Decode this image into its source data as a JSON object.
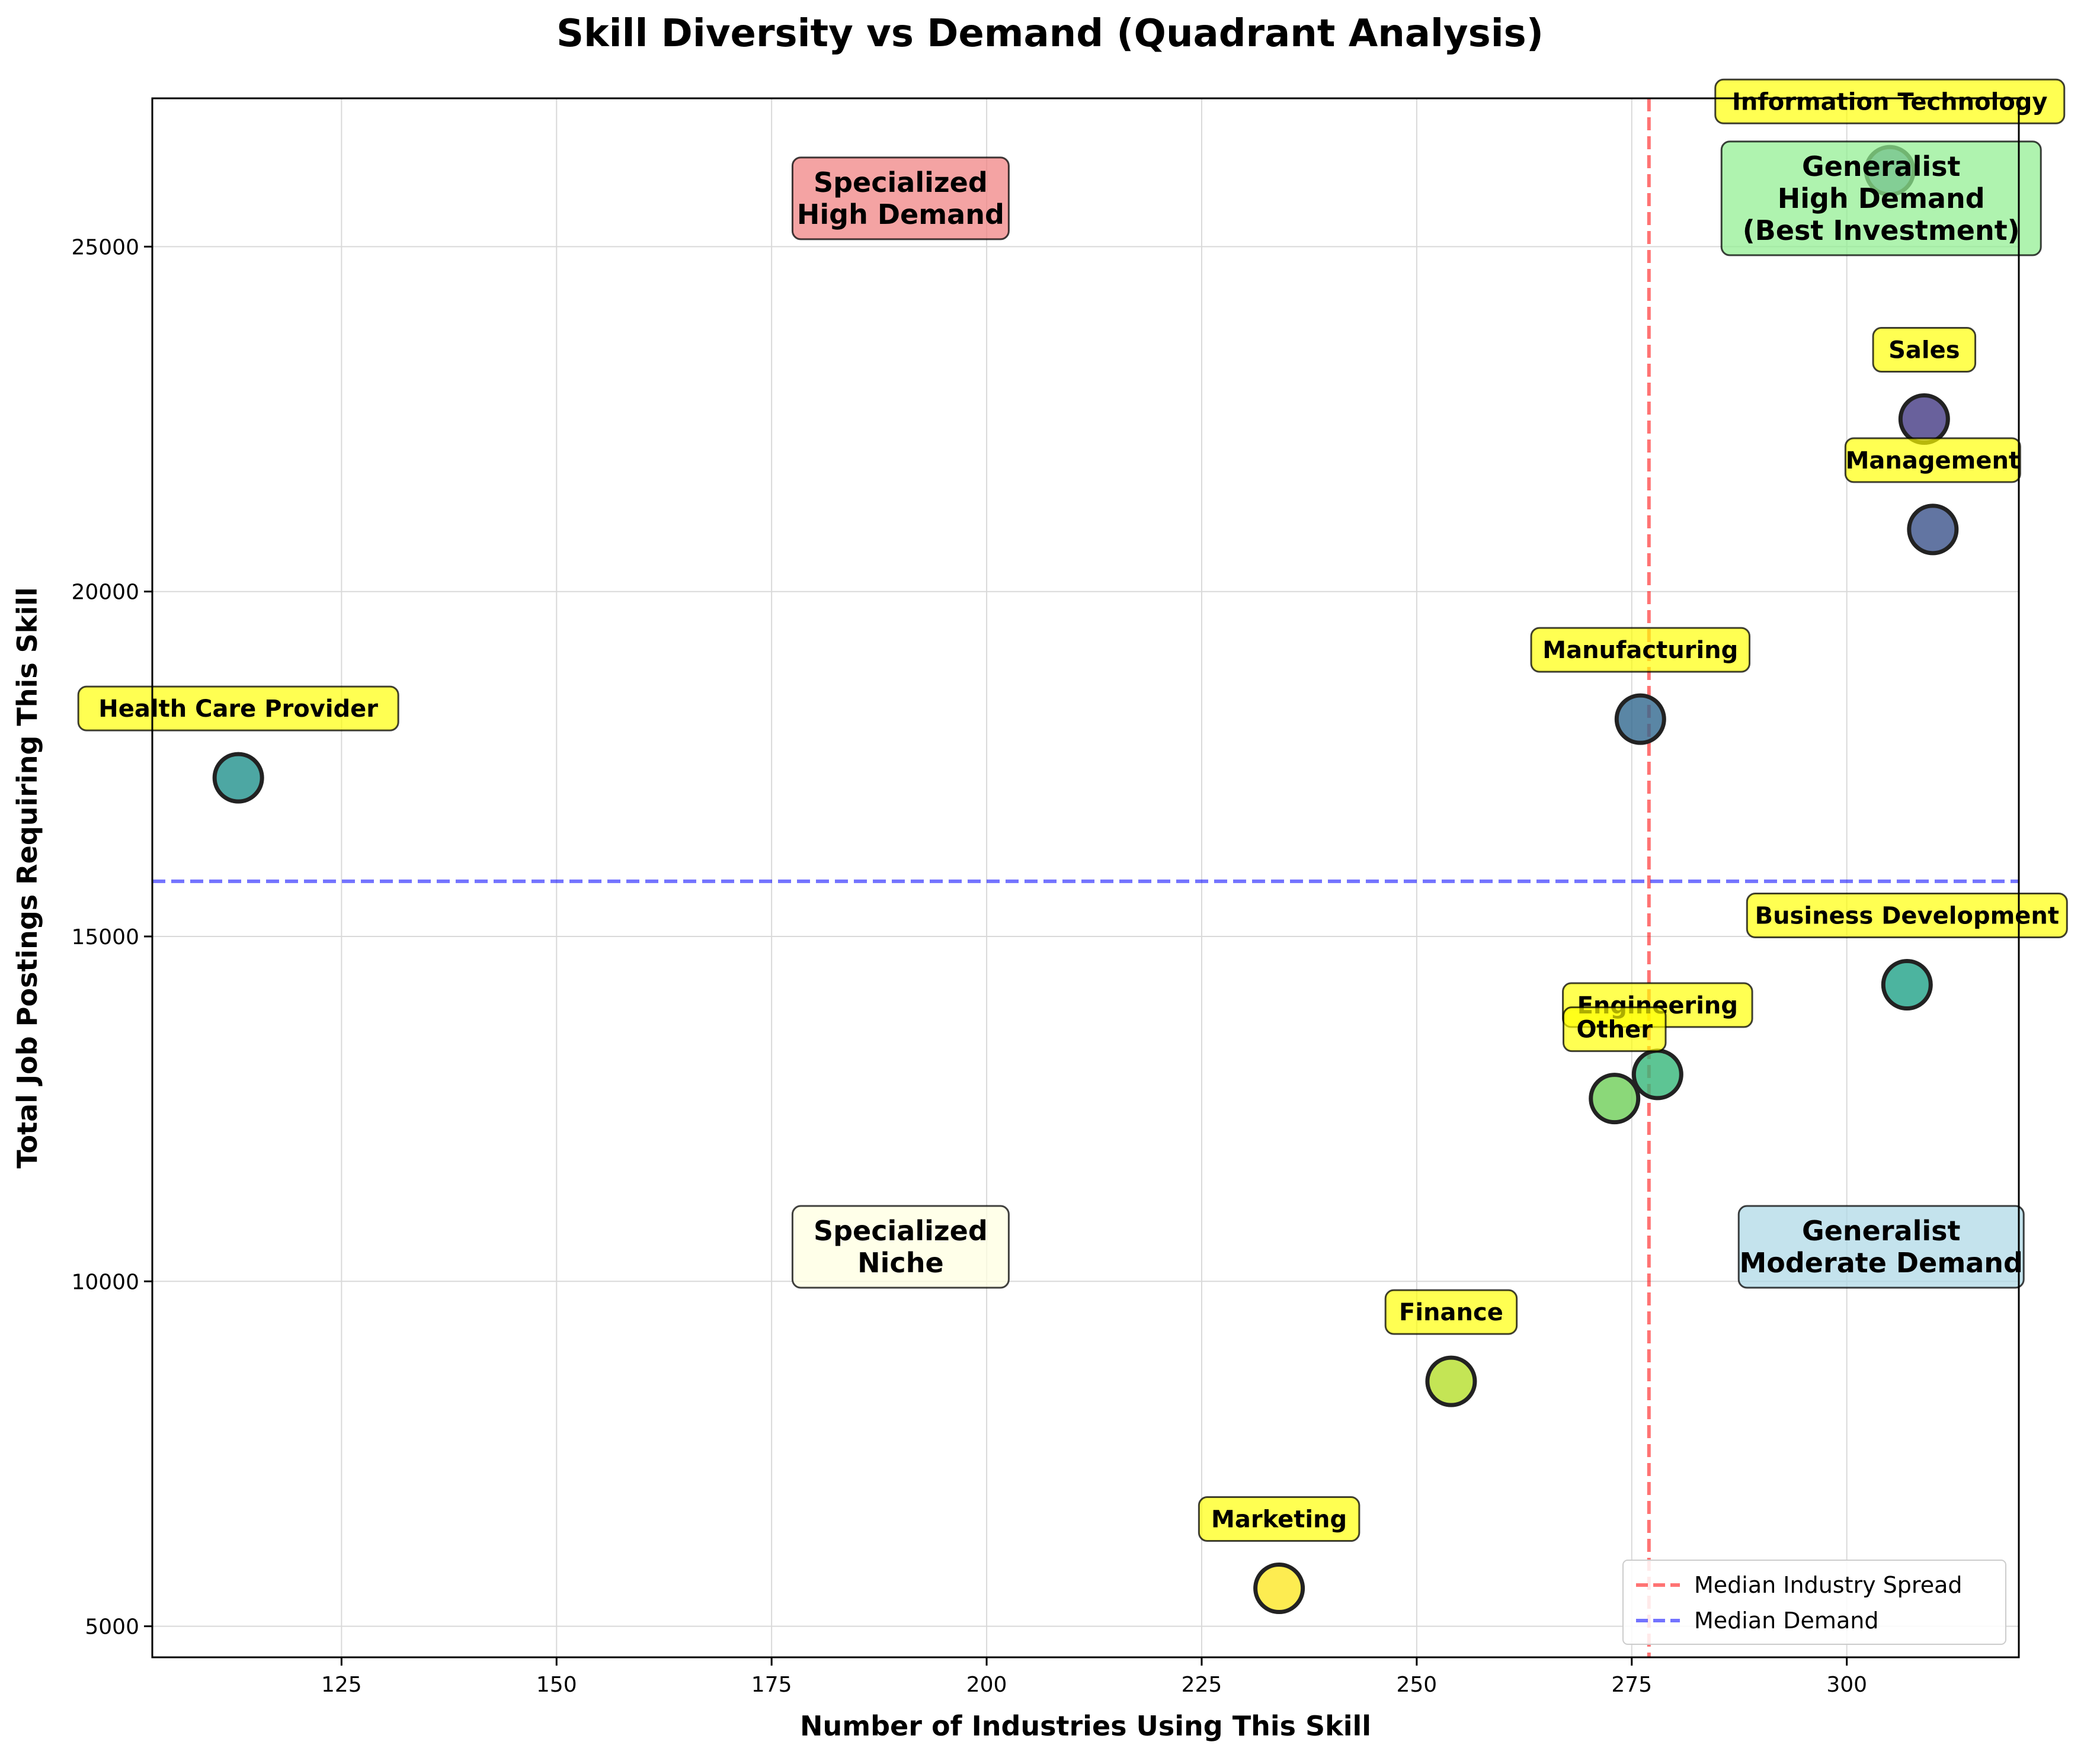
{
  "chart_data": {
    "type": "scatter",
    "title": "Skill Diversity vs Demand (Quadrant Analysis)",
    "xlabel": "Number of Industries Using This Skill",
    "ylabel": "Total Job Postings Requiring This Skill",
    "xlim": [
      103,
      320
    ],
    "ylim": [
      4550,
      27150
    ],
    "xticks": [
      125,
      150,
      175,
      200,
      225,
      250,
      275,
      300
    ],
    "yticks": [
      5000,
      10000,
      15000,
      20000,
      25000
    ],
    "grid": true,
    "median_x": 277,
    "median_y": 15800,
    "points": [
      {
        "label": "Information Technology",
        "x": 305,
        "y": 26100,
        "color": "#38598c"
      },
      {
        "label": "Sales",
        "x": 309,
        "y": 22500,
        "color": "#443a83"
      },
      {
        "label": "Management",
        "x": 310,
        "y": 20900,
        "color": "#3b528b"
      },
      {
        "label": "Manufacturing",
        "x": 276,
        "y": 18150,
        "color": "#31688e"
      },
      {
        "label": "Health Care Provider",
        "x": 113,
        "y": 17300,
        "color": "#21918c"
      },
      {
        "label": "Business Development",
        "x": 307,
        "y": 14300,
        "color": "#1fa187"
      },
      {
        "label": "Engineering",
        "x": 278,
        "y": 13000,
        "color": "#35b779"
      },
      {
        "label": "Other",
        "x": 273,
        "y": 12650,
        "color": "#6ece58"
      },
      {
        "label": "Finance",
        "x": 254,
        "y": 8550,
        "color": "#b5de2b"
      },
      {
        "label": "Marketing",
        "x": 234,
        "y": 5550,
        "color": "#fde725"
      }
    ],
    "quadrants": [
      {
        "id": "specialized-high-demand",
        "lines": [
          "Specialized",
          "High Demand"
        ],
        "color": "#f08080"
      },
      {
        "id": "generalist-high-demand",
        "lines": [
          "Generalist",
          "High Demand",
          "(Best Investment)"
        ],
        "color": "#90ee90"
      },
      {
        "id": "specialized-niche",
        "lines": [
          "Specialized",
          "Niche"
        ],
        "color": "#ffffe0"
      },
      {
        "id": "generalist-moderate-demand",
        "lines": [
          "Generalist",
          "Moderate Demand"
        ],
        "color": "#add8e6"
      }
    ],
    "legend": {
      "placement": "bottom-right",
      "entries": [
        {
          "label": "Median Industry Spread",
          "color": "#ff0000"
        },
        {
          "label": "Median Demand",
          "color": "#0000ff"
        }
      ]
    }
  }
}
